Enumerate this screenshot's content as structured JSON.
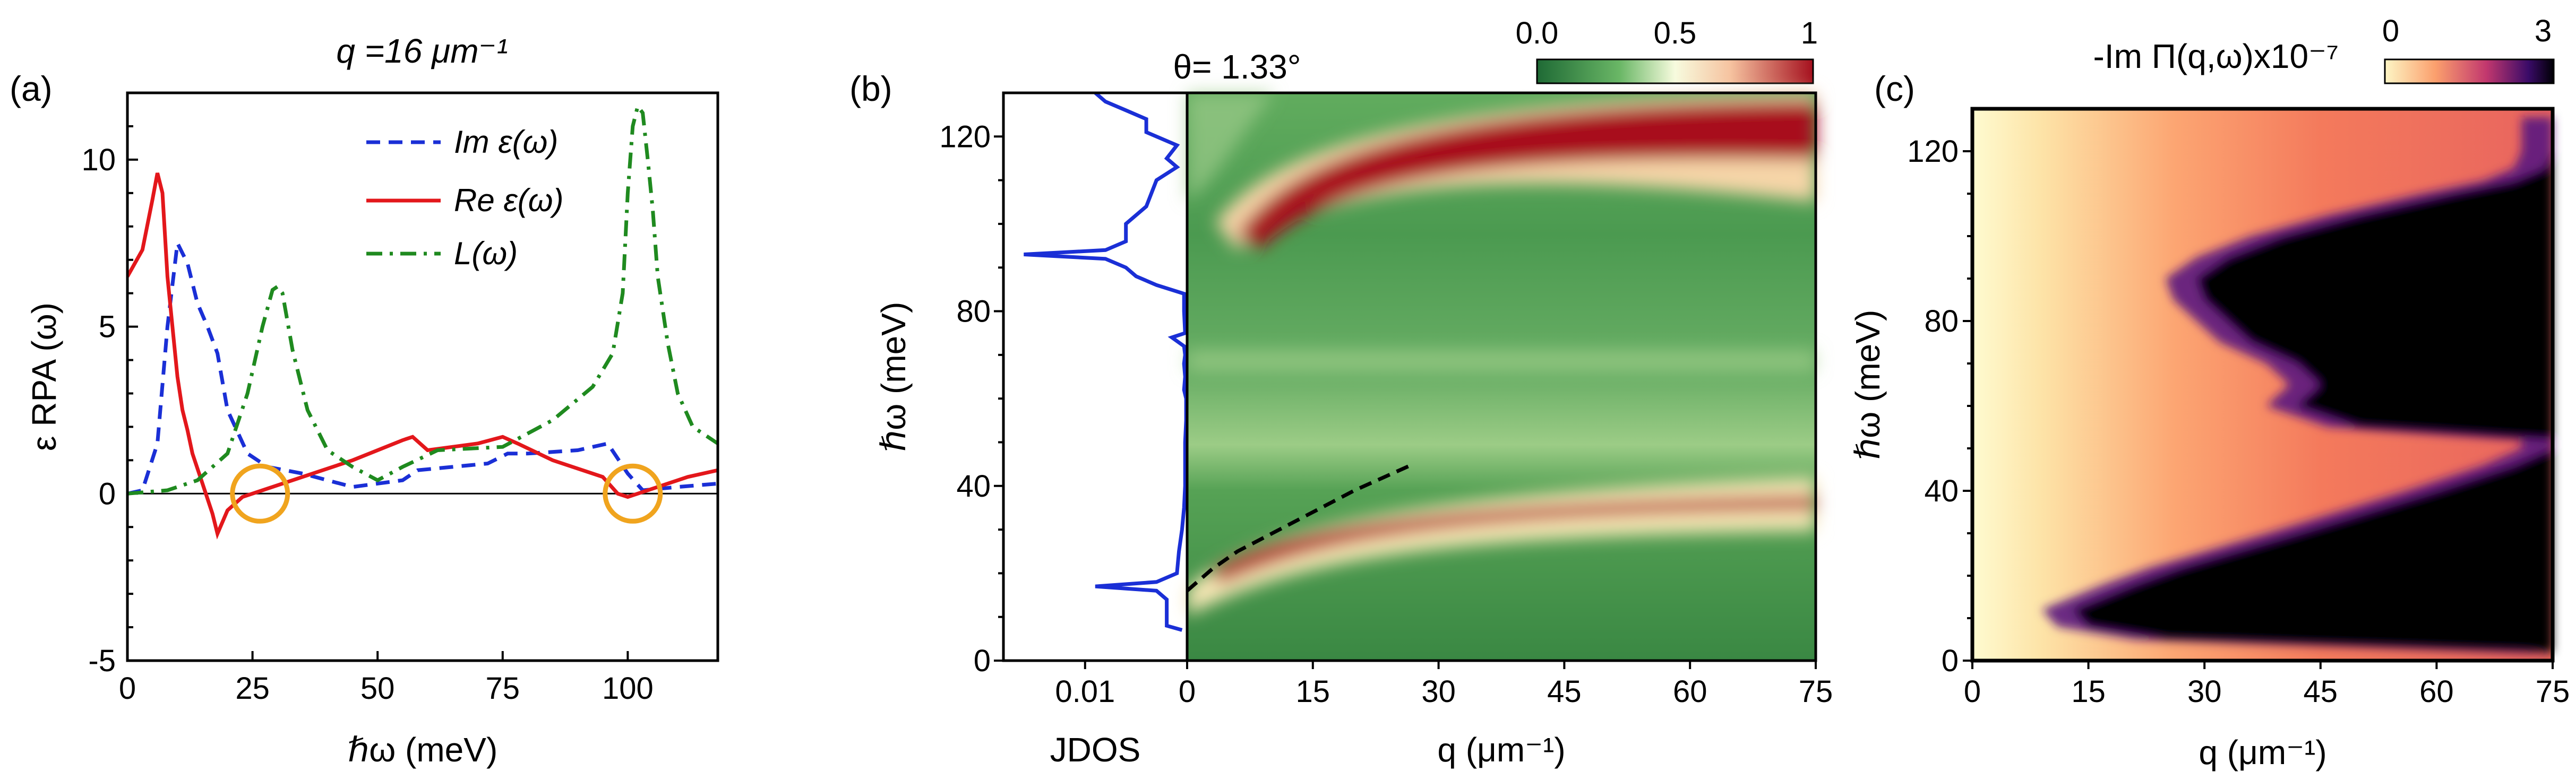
{
  "figure": {
    "panel_a": {
      "label": "(a)",
      "title": "q =16 μm⁻¹",
      "xlabel": "ℏω (meV)",
      "ylabel": "ε RPA (ω)",
      "legend": [
        "Im ε(ω)",
        "Re ε(ω)",
        "L(ω)"
      ]
    },
    "panel_b": {
      "label": "(b)",
      "title": "θ= 1.33°",
      "xlabel": "q  (μm⁻¹)",
      "jdos_label": "JDOS",
      "jdos_tick": "0.01",
      "ylabel": "ℏω (meV)",
      "colorbar_ticks": [
        "0.0",
        "0.5",
        "1"
      ]
    },
    "panel_c": {
      "label": "(c)",
      "colorbar_title": "-Im Π(q,ω)x10⁻⁷",
      "colorbar_ticks": [
        "0",
        "3"
      ],
      "xlabel": "q  (μm⁻¹)",
      "ylabel": "ℏω (meV)"
    }
  },
  "colors": {
    "im_eps": "#1a2fd6",
    "re_eps": "#e3171b",
    "loss": "#1f8a1f",
    "circle": "#f0a41e",
    "jdos": "#1a2fd6"
  },
  "chart_data": [
    {
      "type": "line",
      "title": "q =16 μm⁻¹",
      "xlabel": "ℏω (meV)",
      "ylabel": "ε RPA (ω)",
      "xlim": [
        0,
        118
      ],
      "ylim": [
        -5,
        12
      ],
      "xticks": [
        0,
        25,
        50,
        75,
        100
      ],
      "yticks": [
        -5,
        0,
        5,
        10
      ],
      "series": [
        {
          "name": "Im ε(ω)",
          "style": "dashed",
          "x": [
            0,
            3,
            6,
            8,
            10,
            12,
            14,
            16,
            18,
            20,
            24,
            28,
            35,
            45,
            55,
            58,
            65,
            72,
            76,
            80,
            90,
            96,
            100,
            103,
            110,
            118
          ],
          "y": [
            0,
            0.1,
            1.5,
            5.0,
            7.5,
            6.9,
            5.7,
            5.0,
            4.2,
            2.5,
            1.2,
            0.8,
            0.6,
            0.2,
            0.4,
            0.7,
            0.8,
            0.9,
            1.2,
            1.2,
            1.3,
            1.5,
            0.6,
            0.1,
            0.2,
            0.3
          ]
        },
        {
          "name": "Re ε(ω)",
          "style": "solid",
          "x": [
            0,
            3,
            5,
            6,
            7,
            8,
            9,
            10,
            11,
            12,
            13,
            15,
            17,
            18,
            20,
            23,
            27,
            35,
            45,
            55,
            57,
            60,
            65,
            70,
            75,
            78,
            85,
            95,
            98,
            100,
            102,
            106,
            112,
            118
          ],
          "y": [
            6.5,
            7.3,
            8.8,
            9.6,
            9.0,
            6.5,
            5.0,
            3.5,
            2.5,
            1.9,
            1.2,
            0.3,
            -0.6,
            -1.2,
            -0.5,
            -0.1,
            0.1,
            0.5,
            1.0,
            1.6,
            1.7,
            1.3,
            1.4,
            1.5,
            1.7,
            1.5,
            1.0,
            0.5,
            0.0,
            -0.1,
            0.0,
            0.2,
            0.5,
            0.7
          ]
        },
        {
          "name": "L(ω)",
          "style": "dashdot",
          "x": [
            0,
            8,
            14,
            20,
            24,
            27,
            29,
            30,
            31,
            33,
            36,
            40,
            45,
            50,
            55,
            62,
            75,
            85,
            93,
            97,
            99,
            100,
            101,
            102,
            103,
            104,
            105,
            106,
            108,
            110,
            113,
            118
          ],
          "y": [
            0,
            0.1,
            0.4,
            1.2,
            3.0,
            5.0,
            6.1,
            6.2,
            6.0,
            4.3,
            2.5,
            1.3,
            0.8,
            0.4,
            0.8,
            1.3,
            1.4,
            2.2,
            3.2,
            4.2,
            6.0,
            9.0,
            11.0,
            11.6,
            11.4,
            10.0,
            8.5,
            6.5,
            4.5,
            3.0,
            2.0,
            1.5
          ]
        }
      ],
      "annotations": [
        {
          "type": "circle",
          "x": 26.5,
          "y": 0
        },
        {
          "type": "circle",
          "x": 101,
          "y": 0
        }
      ]
    },
    {
      "type": "heatmap",
      "title": "θ= 1.33°",
      "xlabel": "q  (μm⁻¹)",
      "ylabel": "ℏω (meV)",
      "xlim": [
        0,
        75
      ],
      "ylim": [
        0,
        130
      ],
      "xticks": [
        0,
        15,
        30,
        45,
        60,
        75
      ],
      "yticks": [
        0,
        40,
        80,
        120
      ],
      "colorbar": {
        "range": [
          0,
          1
        ],
        "ticks": [
          "0.0",
          "0.5",
          "1"
        ],
        "colormap": "green-white-red"
      },
      "features": [
        {
          "name": "lower plasmon band",
          "q": [
            2,
            5,
            10,
            15,
            20,
            30,
            45,
            60,
            75
          ],
          "omega": [
            15,
            22,
            27,
            31,
            33,
            36,
            39,
            40,
            41
          ]
        },
        {
          "name": "upper plasmon band",
          "q": [
            6,
            8,
            12,
            20,
            30,
            45,
            60,
            75
          ],
          "omega": [
            96,
            100,
            106,
            111,
            115,
            118,
            120,
            122
          ]
        }
      ],
      "fit_curve": {
        "style": "dashed",
        "q": [
          0,
          3,
          6,
          10,
          15,
          20,
          27
        ],
        "omega": [
          16,
          21,
          25,
          29,
          34,
          39,
          45
        ]
      },
      "jdos": {
        "label": "JDOS",
        "xlim": [
          0.018,
          0
        ],
        "xticks": [
          0.01
        ],
        "omega": [
          7,
          8,
          10,
          14,
          16,
          17,
          18,
          20,
          25,
          30,
          35,
          40,
          45,
          50,
          55,
          60,
          62,
          65,
          68,
          70,
          72,
          74,
          75,
          80,
          84,
          86,
          88,
          90,
          92,
          93,
          94,
          96,
          100,
          104,
          110,
          113,
          115,
          118,
          121,
          124,
          126,
          128,
          130
        ],
        "value": [
          0.0005,
          0.002,
          0.002,
          0.002,
          0.003,
          0.009,
          0.003,
          0.001,
          0.0008,
          0.0005,
          0.0003,
          0.0002,
          0.0002,
          0.0002,
          0.0001,
          0.0001,
          0.0003,
          0.0002,
          0.0003,
          0.0002,
          0.0003,
          0.0015,
          0.0002,
          0.0003,
          0.0003,
          0.003,
          0.005,
          0.006,
          0.008,
          0.016,
          0.008,
          0.006,
          0.006,
          0.004,
          0.003,
          0.001,
          0.002,
          0.001,
          0.004,
          0.004,
          0.006,
          0.008,
          0.009
        ]
      }
    },
    {
      "type": "heatmap",
      "title": "-Im Π(q,ω)x10⁻⁷",
      "xlabel": "q  (μm⁻¹)",
      "ylabel": "ℏω (meV)",
      "xlim": [
        0,
        75
      ],
      "ylim": [
        0,
        130
      ],
      "xticks": [
        0,
        15,
        30,
        45,
        60,
        75
      ],
      "yticks": [
        0,
        40,
        80,
        120
      ],
      "colorbar": {
        "range": [
          0,
          3
        ],
        "ticks": [
          "0",
          "3"
        ],
        "colormap": "magma-reversed"
      },
      "saturation_boundary": {
        "omega": [
          2,
          5,
          8,
          12,
          15,
          18,
          22,
          30,
          40,
          46,
          50,
          52,
          55,
          60,
          65,
          70,
          75,
          80,
          85,
          90,
          95,
          100,
          105,
          110,
          113,
          116,
          120,
          124,
          128
        ],
        "q_edge": [
          75,
          25,
          15,
          13,
          17,
          21,
          27,
          42,
          60,
          70,
          75,
          75,
          50,
          42,
          45,
          42,
          36,
          33,
          30,
          29,
          33,
          40,
          50,
          62,
          70,
          74,
          75,
          75,
          75
        ]
      }
    }
  ]
}
